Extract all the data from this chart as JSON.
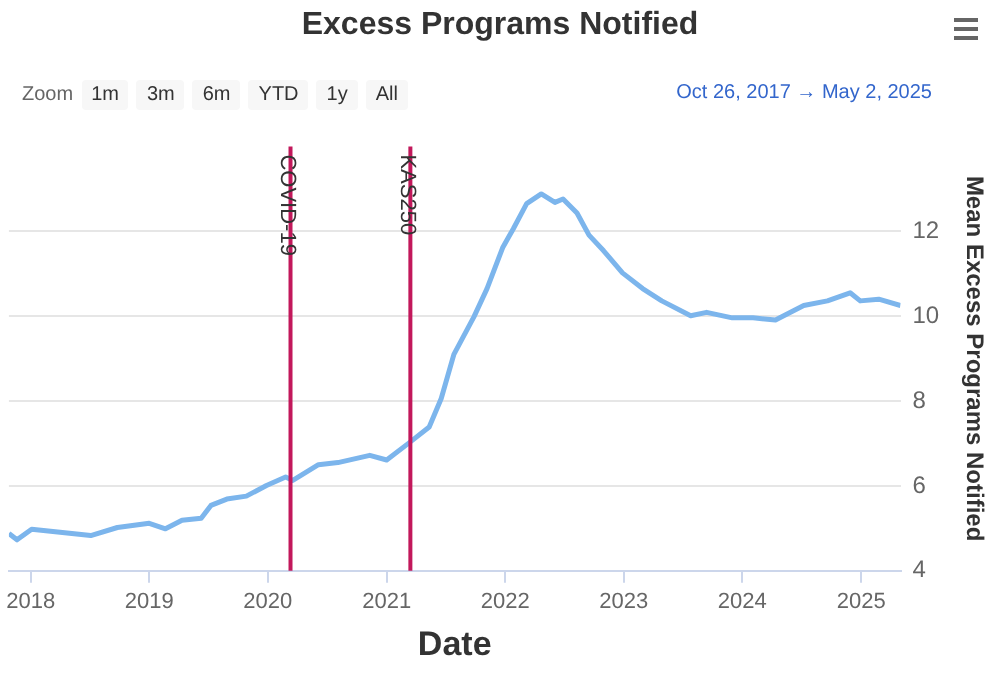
{
  "chart_data": {
    "type": "line",
    "title": "Excess Programs Notified",
    "xlabel": "Date",
    "ylabel": "Mean Excess Programs Notified",
    "annotations": [
      "Zoom",
      "1m",
      "3m",
      "6m",
      "YTD",
      "1y",
      "All",
      "Oct 26, 2017 → May 2, 2025"
    ],
    "x": [
      "2017-10-26",
      "2017-11-20",
      "2018-01-04",
      "2018-07-05",
      "2018-09-25",
      "2019-01-01",
      "2019-02-20",
      "2019-04-12",
      "2019-06-10",
      "2019-07-10",
      "2019-08-28",
      "2019-10-27",
      "2019-12-28",
      "2020-02-25",
      "2020-03-18",
      "2020-06-05",
      "2020-08-04",
      "2020-11-10",
      "2021-01-01",
      "2021-03-12",
      "2021-05-12",
      "2021-06-18",
      "2021-07-27",
      "2021-09-27",
      "2021-11-06",
      "2021-12-24",
      "2022-01-26",
      "2022-03-08",
      "2022-04-22",
      "2022-06-03",
      "2022-06-28",
      "2022-08-10",
      "2022-09-16",
      "2022-10-31",
      "2022-12-28",
      "2023-02-28",
      "2023-04-28",
      "2023-07-26",
      "2023-09-13",
      "2023-12-01",
      "2024-02-03",
      "2024-04-12",
      "2024-07-08",
      "2024-09-19",
      "2024-11-28",
      "2024-12-29",
      "2025-02-24",
      "2025-05-02"
    ],
    "series": [
      {
        "color": "#7cb5ec",
        "values": [
          4.88,
          4.73,
          4.98,
          4.83,
          5.02,
          5.12,
          4.99,
          5.19,
          5.24,
          5.54,
          5.69,
          5.76,
          6.01,
          6.21,
          6.13,
          6.5,
          6.55,
          6.72,
          6.61,
          7.02,
          7.39,
          8.06,
          9.1,
          9.99,
          10.65,
          11.61,
          12.06,
          12.65,
          12.88,
          12.68,
          12.76,
          12.43,
          11.91,
          11.54,
          11.02,
          10.65,
          10.36,
          10.01,
          10.09,
          9.96,
          9.96,
          9.91,
          10.25,
          10.36,
          10.55,
          10.36,
          10.4,
          10.25
        ]
      }
    ],
    "xlim": [
      "2017-10-26",
      "2025-05-02"
    ],
    "xticks": [
      "2018",
      "2019",
      "2020",
      "2021",
      "2022",
      "2023",
      "2024",
      "2025"
    ],
    "ylim": [
      4,
      14
    ],
    "yticks": [
      4,
      6,
      8,
      10,
      12
    ],
    "ref_lines": [
      {
        "axis": "x",
        "value": "2020-03-11",
        "label": "COVID-19",
        "color": "#c2185b"
      },
      {
        "axis": "x",
        "value": "2021-03-15",
        "label": "KAS250",
        "color": "#c2185b"
      }
    ],
    "grid": "y",
    "legend": false,
    "marker": "none",
    "line_style": "solid"
  }
}
